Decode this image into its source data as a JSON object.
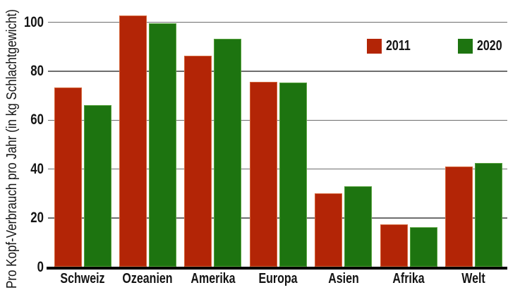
{
  "chart_data": {
    "type": "bar",
    "categories": [
      "Schweiz",
      "Ozeanien",
      "Amerika",
      "Europa",
      "Asien",
      "Afrika",
      "Welt"
    ],
    "series": [
      {
        "name": "2011",
        "color": "#b32506",
        "edge_color": "#d4653a",
        "values": [
          73.4,
          102.6,
          86.3,
          75.6,
          30.2,
          17.3,
          41.2
        ]
      },
      {
        "name": "2020",
        "color": "#1d7410",
        "edge_color": "#55a13d",
        "values": [
          66.2,
          99.5,
          93.2,
          75.5,
          33.1,
          16.4,
          42.6
        ]
      }
    ],
    "title": "",
    "xlabel": "",
    "ylabel": "Pro Kopf-Verbrauch pro Jahr (in kg Schlachtgewicht)",
    "yticks": [
      0,
      20,
      40,
      60,
      80,
      100
    ],
    "ylim": [
      0,
      110
    ],
    "grid": true,
    "legend_position": "top-right"
  },
  "colors": {
    "background": "#ffffff",
    "gridline": "#6e6e6e",
    "axis": "#000000",
    "text": "#141414"
  }
}
